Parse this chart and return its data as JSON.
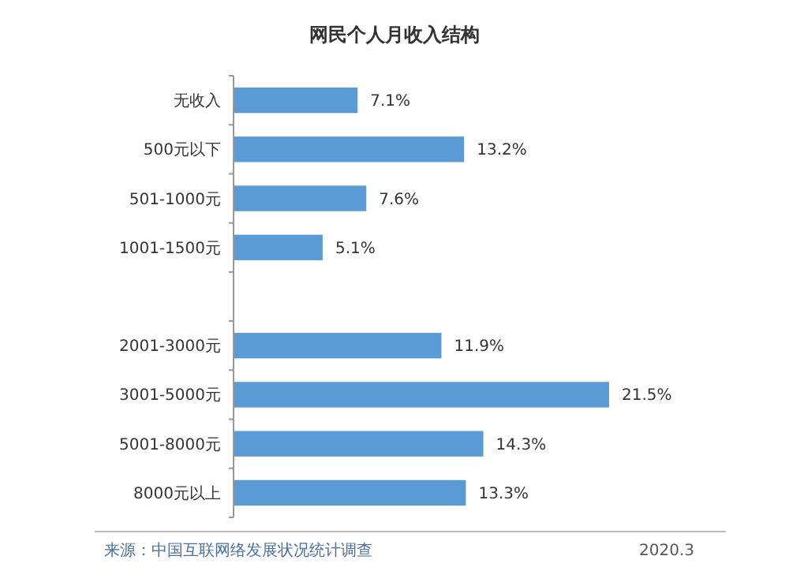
{
  "chart_data": {
    "type": "bar",
    "orientation": "horizontal",
    "title": "网民个人月收入结构",
    "categories": [
      "无收入",
      "500元以下",
      "501-1000元",
      "1001-1500元",
      null,
      "2001-3000元",
      "3001-5000元",
      "5001-8000元",
      "8000元以上"
    ],
    "values": [
      7.1,
      13.2,
      7.6,
      5.1,
      null,
      11.9,
      21.5,
      14.3,
      13.3
    ],
    "value_labels": [
      "7.1%",
      "13.2%",
      "7.6%",
      "5.1%",
      null,
      "11.9%",
      "21.5%",
      "14.3%",
      "13.3%"
    ],
    "color": "#5b9bd5",
    "data_labels": true,
    "annotations": [
      "来源：中国互联网络发展状况统计调查",
      "2020.3"
    ]
  }
}
